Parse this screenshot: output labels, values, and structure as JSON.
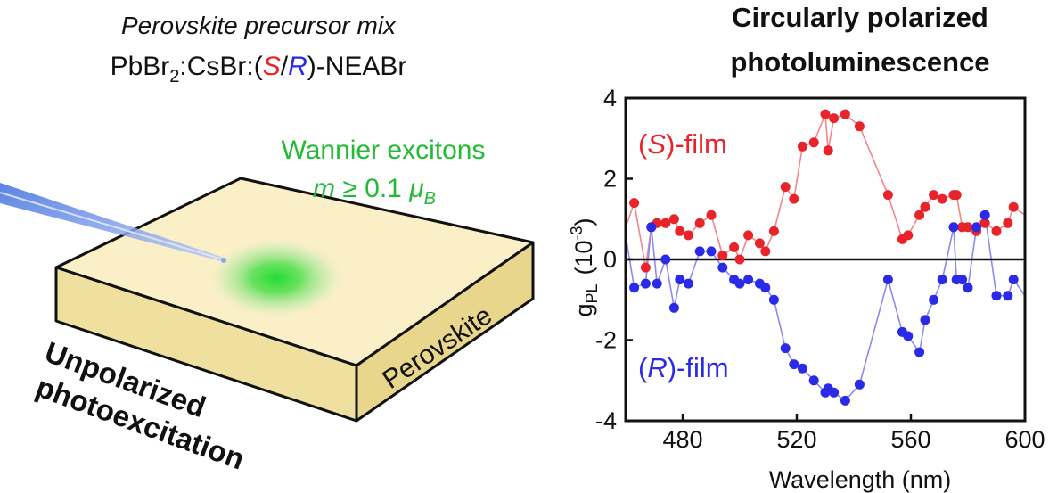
{
  "left": {
    "precursor_title": "Perovskite precursor mix",
    "formula": {
      "part1": "PbBr",
      "sub": "2",
      "part2": ":CsBr:(",
      "s": "S",
      "slash": "/",
      "r": "R",
      "part3": ")-NEABr"
    },
    "exciton_title": "Wannier excitons",
    "moment": {
      "m": "m",
      "rel": " ≥ 0.1 ",
      "mu": "μ",
      "sub": "B"
    },
    "slab_label": "Perovskite",
    "excitation_label": [
      "Unpolarized",
      "photoexcitation"
    ]
  },
  "colors": {
    "s_series": "#e8232a",
    "r_series": "#2a2ae8",
    "exciton": "#22cc33",
    "beam": "#6d8ee6",
    "slab_top": "#fbefc8",
    "slab_side": "#f1e2a4",
    "slab_front": "#e9d890"
  },
  "chart_data": {
    "type": "line",
    "title": [
      "Circularly polarized",
      "photoluminescence"
    ],
    "xlabel": "Wavelength (nm)",
    "ylabel": {
      "base": "g",
      "sub": "PL",
      "unit": "(10",
      "exp": "-3",
      "close": ")"
    },
    "xlim": [
      460,
      600
    ],
    "ylim": [
      -4,
      4
    ],
    "xticks": [
      480,
      520,
      560,
      600
    ],
    "yticks": [
      4,
      2,
      0,
      -2,
      -4
    ],
    "zero_line": true,
    "annotations": [
      {
        "series": "S",
        "pre": "(",
        "letter": "S",
        "post": ")-film"
      },
      {
        "series": "R",
        "pre": "(",
        "letter": "R",
        "post": ")-film"
      }
    ],
    "series": [
      {
        "name": "S",
        "x": [
          460,
          463,
          467,
          469,
          471,
          474,
          477,
          479,
          482,
          486,
          490,
          494,
          498,
          500,
          503,
          507,
          509,
          512,
          516,
          519,
          522,
          526,
          530,
          531,
          533,
          537,
          542,
          552,
          557,
          559,
          563,
          565,
          568,
          571,
          575,
          576,
          578,
          580,
          583,
          586,
          590,
          594,
          596,
          600
        ],
        "y": [
          0.8,
          1.4,
          -0.2,
          0.8,
          0.9,
          0.9,
          1.0,
          0.7,
          0.6,
          0.9,
          1.1,
          0.1,
          0.3,
          0.0,
          0.6,
          0.4,
          0.2,
          0.7,
          1.8,
          1.5,
          2.8,
          2.9,
          3.6,
          2.7,
          3.5,
          3.6,
          3.3,
          1.6,
          0.5,
          0.6,
          1.1,
          1.3,
          1.6,
          1.5,
          1.6,
          1.6,
          0.8,
          0.8,
          0.7,
          0.9,
          0.7,
          0.9,
          1.3,
          1.1
        ]
      },
      {
        "name": "R",
        "x": [
          460,
          463,
          467,
          469,
          471,
          474,
          477,
          479,
          482,
          486,
          490,
          494,
          498,
          500,
          503,
          507,
          509,
          512,
          516,
          519,
          522,
          526,
          530,
          531,
          533,
          537,
          542,
          552,
          557,
          559,
          563,
          565,
          568,
          571,
          575,
          576,
          578,
          580,
          583,
          586,
          590,
          594,
          596,
          600
        ],
        "y": [
          0.6,
          -0.7,
          -0.6,
          0.8,
          -0.6,
          0.0,
          -1.2,
          -0.5,
          -0.6,
          0.2,
          0.2,
          -0.2,
          -0.5,
          -0.6,
          -0.5,
          -0.6,
          -0.7,
          -1.0,
          -2.2,
          -2.6,
          -2.7,
          -3.0,
          -3.3,
          -3.2,
          -3.3,
          -3.5,
          -3.1,
          -0.5,
          -1.8,
          -1.9,
          -2.3,
          -1.5,
          -1.0,
          -0.5,
          0.8,
          -0.5,
          -0.5,
          -0.7,
          0.8,
          1.1,
          -0.9,
          -0.9,
          -0.5,
          -0.9
        ]
      }
    ]
  }
}
